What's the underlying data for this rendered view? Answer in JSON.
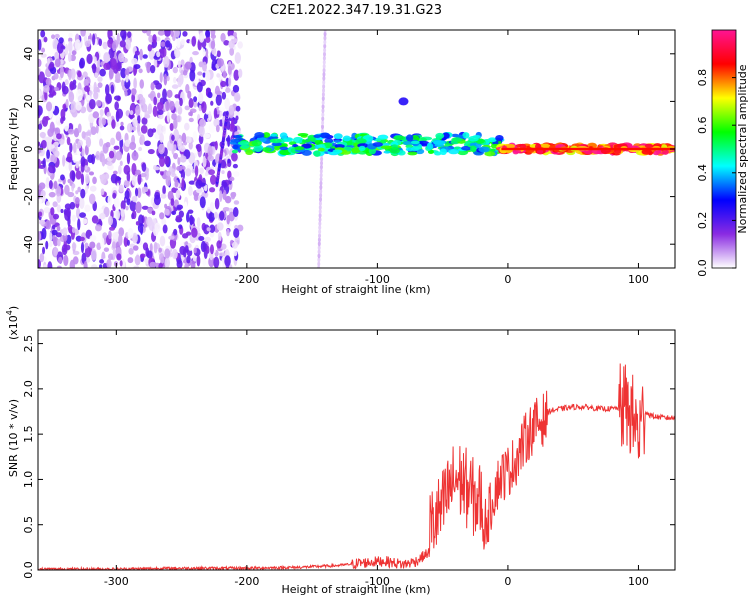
{
  "title": "C2E1.2022.347.19.31.G23",
  "chart_data": [
    {
      "type": "heatmap",
      "xlabel": "Height of straight line (km)",
      "ylabel": "Frequency (Hz)",
      "xlim": [
        -360,
        128
      ],
      "ylim": [
        -50,
        50
      ],
      "x_ticks": [
        -300,
        -200,
        -100,
        0,
        100
      ],
      "y_ticks": [
        -40,
        -20,
        0,
        20,
        40
      ],
      "colorbar": {
        "label": "Normalized spectral amplitude",
        "range": [
          0,
          1
        ],
        "ticks": [
          "0.0",
          "0.2",
          "0.4",
          "0.6",
          "0.8"
        ],
        "colors": [
          "#ffffff",
          "#8a2be2",
          "#0000ff",
          "#00ffff",
          "#00ff00",
          "#ffff00",
          "#ff0000",
          "#ff1493"
        ]
      },
      "features": [
        {
          "name": "noise",
          "x": [
            -360,
            -205
          ],
          "frequency_range": [
            -50,
            50
          ],
          "amplitude": 0.15
        },
        {
          "name": "streak",
          "x": [
            -223,
            -215
          ],
          "frequency": [
            -15,
            15
          ],
          "amplitude": 0.2
        },
        {
          "name": "streak",
          "x": [
            -145,
            -140
          ],
          "frequency": [
            -50,
            50
          ],
          "amplitude": 0.05
        },
        {
          "name": "signal",
          "x": [
            -210,
            -5
          ],
          "frequency": 2,
          "amplitude": 0.45
        },
        {
          "name": "signal",
          "x": [
            -5,
            128
          ],
          "frequency": 0,
          "amplitude": 0.85
        },
        {
          "name": "blob",
          "x": -80,
          "frequency": 20,
          "amplitude": 0.25
        }
      ]
    },
    {
      "type": "line",
      "xlabel": "Height of straight line (km)",
      "ylabel": "SNR (10 * v/v)",
      "y_multiplier": "(x10",
      "y_multiplier_exp": "4",
      "y_multiplier_close": ")",
      "xlim": [
        -360,
        128
      ],
      "ylim": [
        0,
        2.65
      ],
      "x_ticks": [
        -300,
        -200,
        -100,
        0,
        100
      ],
      "y_ticks": [
        "0.0",
        "0.5",
        "1.0",
        "1.5",
        "2.0",
        "2.5"
      ],
      "color": "#ee3333",
      "series": [
        {
          "x": [
            -360,
            -300,
            -250,
            -200,
            -160,
            -130,
            -110,
            -95,
            -80,
            -70,
            -60,
            -50,
            -45,
            -40,
            -35,
            -30,
            -25,
            -20,
            -15,
            -10,
            -5,
            0,
            5,
            10,
            15,
            20,
            25,
            30,
            40,
            50,
            60,
            70,
            80,
            90,
            95,
            100,
            105,
            110,
            120,
            128
          ],
          "y": [
            0.01,
            0.01,
            0.02,
            0.02,
            0.03,
            0.05,
            0.08,
            0.1,
            0.06,
            0.1,
            0.2,
            0.4,
            0.6,
            0.75,
            0.7,
            0.6,
            0.5,
            0.5,
            0.65,
            0.95,
            1.1,
            1.15,
            1.25,
            1.4,
            1.55,
            1.65,
            1.7,
            1.75,
            1.78,
            1.8,
            1.8,
            1.78,
            1.78,
            1.8,
            1.7,
            1.5,
            1.75,
            1.7,
            1.68,
            1.68
          ]
        }
      ]
    }
  ]
}
